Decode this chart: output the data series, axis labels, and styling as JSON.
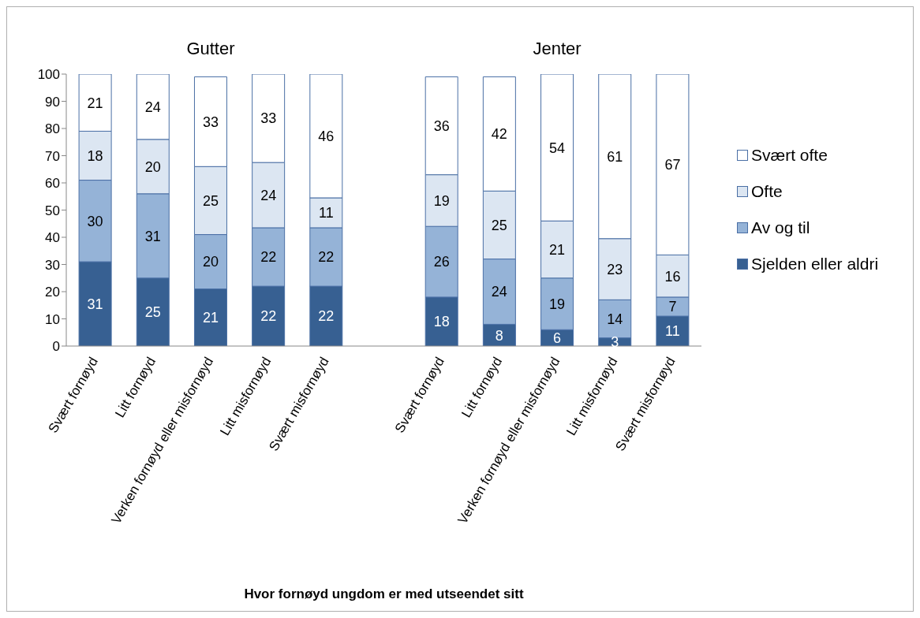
{
  "chart_data": {
    "type": "bar",
    "stacked": true,
    "xlabel": "Hvor fornøyd ungdom er med utseendet sitt",
    "annotations": [
      "Gutter",
      "Jenter"
    ],
    "categories": [
      "Svært fornøyd",
      "Litt fornøyd",
      "Verken fornøyd eller misfornøyd",
      "Litt misfornøyd",
      "Svært misfornøyd",
      null,
      "Svært fornøyd",
      "Litt fornøyd",
      "Verken fornøyd eller misfornøyd",
      "Litt misfornøyd",
      "Svært misfornøyd"
    ],
    "series": [
      {
        "name": "Sjelden eller aldri",
        "color": "#376092",
        "values": [
          31,
          25,
          21,
          22,
          22,
          null,
          18,
          8,
          6,
          3,
          11
        ],
        "value_labels": [
          "31",
          "25",
          "21",
          "22",
          "22",
          null,
          "18",
          "8",
          "6",
          "3",
          "11"
        ]
      },
      {
        "name": "Av og til",
        "color": "#95b3d7",
        "values": [
          30,
          31,
          20,
          21.5,
          21.5,
          null,
          26,
          24,
          19,
          14,
          7
        ],
        "value_labels": [
          "30",
          "31",
          "20",
          "22",
          "22",
          null,
          "26",
          "24",
          "19",
          "14",
          "7"
        ]
      },
      {
        "name": "Ofte",
        "color": "#dce6f2",
        "values": [
          18,
          20,
          25,
          24,
          11,
          null,
          19,
          25,
          21,
          22.5,
          15.5
        ],
        "value_labels": [
          "18",
          "20",
          "25",
          "24",
          "11",
          null,
          "19",
          "25",
          "21",
          "23",
          "16"
        ]
      },
      {
        "name": "Svært ofte",
        "color": "#ffffff",
        "values": [
          21,
          24,
          33,
          32.5,
          45.5,
          null,
          36,
          42,
          54,
          60.5,
          66.5
        ],
        "value_labels": [
          "21",
          "24",
          "33",
          "33",
          "46",
          null,
          "36",
          "42",
          "54",
          "61",
          "67"
        ]
      }
    ],
    "ylim": [
      0,
      100
    ],
    "yticks": [
      0,
      10,
      20,
      30,
      40,
      50,
      60,
      70,
      80,
      90,
      100
    ],
    "grid": false,
    "legend": "right"
  }
}
